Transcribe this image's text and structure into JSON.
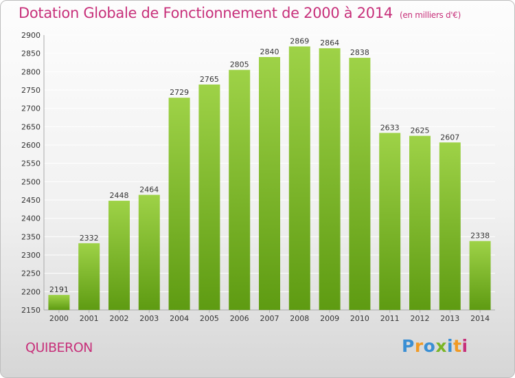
{
  "header": {
    "title": "Dotation Globale de Fonctionnement de 2000 à 2014",
    "subtitle": "(en milliers d'€)"
  },
  "footer": {
    "city": "QUIBERON",
    "brand": [
      "P",
      "r",
      "o",
      "x",
      "i",
      "t",
      "i"
    ]
  },
  "colors": {
    "bar_top": "#9ed247",
    "bar_bottom": "#5e9b12",
    "title": "#c7307a",
    "grid": "#ffffff"
  },
  "chart_data": {
    "type": "bar",
    "categories": [
      "2000",
      "2001",
      "2002",
      "2003",
      "2004",
      "2005",
      "2006",
      "2007",
      "2008",
      "2009",
      "2010",
      "2011",
      "2012",
      "2013",
      "2014"
    ],
    "values": [
      2191,
      2332,
      2448,
      2464,
      2729,
      2765,
      2805,
      2840,
      2869,
      2864,
      2838,
      2633,
      2625,
      2607,
      2338
    ],
    "title": "Dotation Globale de Fonctionnement de 2000 à 2014",
    "subtitle": "(en milliers d'€)",
    "ylim": [
      2150,
      2900
    ],
    "yticks": [
      2150,
      2200,
      2250,
      2300,
      2350,
      2400,
      2450,
      2500,
      2550,
      2600,
      2650,
      2700,
      2750,
      2800,
      2850,
      2900
    ],
    "grid": true,
    "data_labels": true
  }
}
